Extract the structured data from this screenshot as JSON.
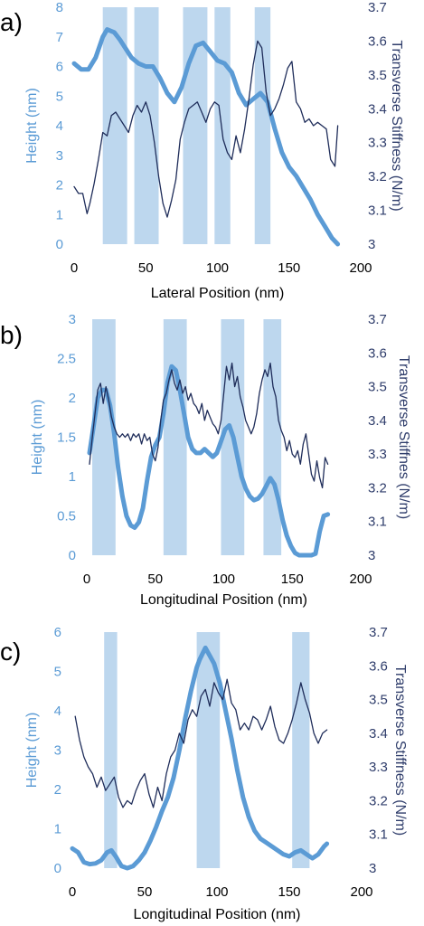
{
  "colors": {
    "height_line": "#5b9bd5",
    "stiffness_line": "#1f2d5a",
    "band_fill": "#bdd7ee",
    "left_axis_text": "#5b9bd5",
    "right_axis_text": "#2f3d6b"
  },
  "chart_data": [
    {
      "panel": "a)",
      "type": "line",
      "xlabel": "Lateral Position (nm)",
      "ylabel_left": "Height (nm)",
      "ylabel_right": "Transverse Stiffness (N/m)",
      "xlim": [
        0,
        200
      ],
      "ylim_left": [
        0,
        8
      ],
      "ylim_right": [
        3,
        3.7
      ],
      "xticks": [
        "0",
        "50",
        "100",
        "150",
        "200"
      ],
      "yticks_left": [
        "0",
        "1",
        "2",
        "3",
        "4",
        "5",
        "6",
        "7",
        "8"
      ],
      "yticks_right": [
        "3",
        "3.1",
        "3.2",
        "3.3",
        "3.4",
        "3.5",
        "3.6",
        "3.7"
      ],
      "bands": [
        [
          20,
          37
        ],
        [
          42,
          59
        ],
        [
          76,
          93
        ],
        [
          98,
          109
        ],
        [
          126,
          137
        ]
      ],
      "series": [
        {
          "name": "Height",
          "axis": "left",
          "x": [
            0,
            5,
            10,
            15,
            20,
            23,
            28,
            32,
            36,
            40,
            45,
            50,
            55,
            60,
            65,
            70,
            75,
            80,
            85,
            90,
            95,
            100,
            105,
            110,
            115,
            120,
            125,
            130,
            135,
            140,
            145,
            150,
            155,
            160,
            165,
            170,
            175,
            180,
            184
          ],
          "y": [
            6.1,
            5.9,
            5.9,
            6.3,
            7.0,
            7.25,
            7.15,
            6.9,
            6.6,
            6.3,
            6.1,
            6.0,
            6.0,
            5.6,
            5.1,
            4.8,
            5.3,
            6.1,
            6.7,
            6.8,
            6.5,
            6.2,
            6.1,
            5.8,
            5.1,
            4.7,
            4.9,
            5.1,
            4.8,
            3.9,
            3.1,
            2.6,
            2.3,
            1.9,
            1.5,
            1.0,
            0.6,
            0.2,
            0.0
          ]
        },
        {
          "name": "Transverse Stiffness",
          "axis": "right",
          "x": [
            0,
            3,
            6,
            9,
            11,
            14,
            17,
            20,
            23,
            26,
            29,
            32,
            35,
            38,
            41,
            44,
            47,
            50,
            53,
            56,
            59,
            62,
            65,
            68,
            71,
            74,
            77,
            80,
            83,
            86,
            89,
            92,
            95,
            98,
            101,
            104,
            107,
            110,
            113,
            116,
            119,
            122,
            125,
            128,
            131,
            134,
            137,
            140,
            143,
            146,
            149,
            152,
            155,
            158,
            161,
            164,
            167,
            170,
            173,
            176,
            179,
            182,
            184
          ],
          "y": [
            3.17,
            3.15,
            3.15,
            3.09,
            3.12,
            3.18,
            3.25,
            3.33,
            3.32,
            3.38,
            3.39,
            3.37,
            3.35,
            3.33,
            3.38,
            3.41,
            3.39,
            3.42,
            3.38,
            3.3,
            3.2,
            3.12,
            3.08,
            3.13,
            3.19,
            3.31,
            3.36,
            3.4,
            3.41,
            3.42,
            3.39,
            3.36,
            3.4,
            3.42,
            3.41,
            3.31,
            3.27,
            3.25,
            3.32,
            3.27,
            3.34,
            3.43,
            3.53,
            3.6,
            3.58,
            3.45,
            3.38,
            3.4,
            3.43,
            3.47,
            3.52,
            3.54,
            3.42,
            3.4,
            3.36,
            3.37,
            3.35,
            3.36,
            3.35,
            3.34,
            3.25,
            3.23,
            3.35
          ]
        }
      ]
    },
    {
      "panel": "b)",
      "type": "line",
      "xlabel": "Longitudinal Position (nm)",
      "ylabel_left": "Height (nm)",
      "ylabel_right": "Transverse Stiffnes (N/m)",
      "xlim": [
        0,
        200
      ],
      "ylim_left": [
        0,
        3
      ],
      "ylim_right": [
        3,
        3.7
      ],
      "xticks": [
        "0",
        "50",
        "100",
        "150",
        "200"
      ],
      "yticks_left": [
        "0",
        "0.5",
        "1",
        "1.5",
        "2",
        "2.5",
        "3"
      ],
      "yticks_right": [
        "3",
        "3.1",
        "3.2",
        "3.3",
        "3.4",
        "3.5",
        "3.6",
        "3.7"
      ],
      "bands": [
        [
          4,
          21
        ],
        [
          56,
          73
        ],
        [
          98,
          115
        ],
        [
          129,
          142
        ]
      ],
      "series": [
        {
          "name": "Height",
          "axis": "left",
          "x": [
            2,
            5,
            8,
            11,
            14,
            17,
            20,
            23,
            26,
            29,
            32,
            35,
            38,
            41,
            44,
            47,
            50,
            53,
            56,
            59,
            62,
            65,
            68,
            71,
            74,
            77,
            80,
            83,
            86,
            89,
            92,
            95,
            98,
            101,
            104,
            107,
            110,
            113,
            116,
            119,
            122,
            125,
            128,
            131,
            134,
            137,
            140,
            143,
            146,
            149,
            152,
            155,
            158,
            161,
            164,
            167,
            170,
            173,
            176
          ],
          "y": [
            1.3,
            1.65,
            2.0,
            2.1,
            2.1,
            1.9,
            1.55,
            1.1,
            0.75,
            0.5,
            0.38,
            0.35,
            0.42,
            0.6,
            0.95,
            1.25,
            1.4,
            1.5,
            1.8,
            2.2,
            2.4,
            2.35,
            2.1,
            1.8,
            1.5,
            1.35,
            1.3,
            1.3,
            1.35,
            1.3,
            1.25,
            1.3,
            1.45,
            1.6,
            1.65,
            1.5,
            1.25,
            1.0,
            0.85,
            0.75,
            0.7,
            0.72,
            0.78,
            0.88,
            0.98,
            0.9,
            0.7,
            0.45,
            0.25,
            0.12,
            0.03,
            0.0,
            0.0,
            0.0,
            0.0,
            0.02,
            0.3,
            0.5,
            0.52
          ]
        },
        {
          "name": "Transverse Stiffness",
          "axis": "right",
          "x": [
            2,
            4,
            6,
            8,
            10,
            12,
            14,
            16,
            18,
            20,
            22,
            24,
            26,
            28,
            30,
            32,
            34,
            36,
            38,
            40,
            42,
            44,
            46,
            48,
            50,
            52,
            54,
            56,
            58,
            60,
            62,
            64,
            66,
            68,
            70,
            72,
            74,
            76,
            78,
            80,
            82,
            84,
            86,
            88,
            90,
            92,
            94,
            96,
            98,
            100,
            102,
            104,
            106,
            108,
            110,
            112,
            114,
            116,
            118,
            120,
            122,
            124,
            126,
            128,
            130,
            132,
            134,
            136,
            138,
            140,
            142,
            144,
            146,
            148,
            150,
            152,
            154,
            156,
            158,
            160,
            162,
            164,
            166,
            168,
            170,
            172,
            174,
            176
          ],
          "y": [
            3.27,
            3.35,
            3.42,
            3.49,
            3.51,
            3.45,
            3.5,
            3.46,
            3.41,
            3.38,
            3.36,
            3.35,
            3.36,
            3.35,
            3.36,
            3.34,
            3.36,
            3.35,
            3.36,
            3.33,
            3.36,
            3.34,
            3.35,
            3.3,
            3.28,
            3.32,
            3.4,
            3.46,
            3.48,
            3.52,
            3.55,
            3.51,
            3.49,
            3.52,
            3.48,
            3.5,
            3.46,
            3.48,
            3.45,
            3.44,
            3.42,
            3.45,
            3.4,
            3.43,
            3.41,
            3.39,
            3.38,
            3.36,
            3.4,
            3.48,
            3.56,
            3.52,
            3.57,
            3.5,
            3.53,
            3.47,
            3.44,
            3.4,
            3.38,
            3.36,
            3.38,
            3.42,
            3.48,
            3.52,
            3.55,
            3.53,
            3.57,
            3.5,
            3.47,
            3.4,
            3.37,
            3.35,
            3.31,
            3.34,
            3.3,
            3.29,
            3.31,
            3.27,
            3.33,
            3.36,
            3.3,
            3.24,
            3.22,
            3.28,
            3.23,
            3.2,
            3.29,
            3.27
          ]
        }
      ]
    },
    {
      "panel": "c)",
      "type": "line",
      "xlabel": "Longitudinal Position (nm)",
      "ylabel_left": "Height (nm)",
      "ylabel_right": "Transverse Stiffness (N/m)",
      "xlim": [
        0,
        200
      ],
      "ylim_left": [
        0,
        6
      ],
      "ylim_right": [
        3,
        3.7
      ],
      "xticks": [
        "0",
        "50",
        "100",
        "150",
        "200"
      ],
      "yticks_left": [
        "0",
        "1",
        "2",
        "3",
        "4",
        "5",
        "6"
      ],
      "yticks_right": [
        "3",
        "3.1",
        "3.2",
        "3.3",
        "3.4",
        "3.5",
        "3.6",
        "3.7"
      ],
      "bands": [
        [
          22,
          31
        ],
        [
          86,
          102
        ],
        [
          152,
          164
        ]
      ],
      "series": [
        {
          "name": "Height",
          "axis": "left",
          "x": [
            0,
            4,
            8,
            12,
            16,
            20,
            24,
            27,
            30,
            34,
            38,
            42,
            46,
            50,
            54,
            58,
            62,
            66,
            70,
            74,
            78,
            82,
            86,
            88,
            90,
            92,
            95,
            98,
            102,
            106,
            110,
            114,
            118,
            122,
            126,
            130,
            134,
            138,
            142,
            146,
            150,
            154,
            158,
            162,
            166,
            170,
            174,
            176
          ],
          "y": [
            0.5,
            0.4,
            0.15,
            0.1,
            0.12,
            0.2,
            0.4,
            0.45,
            0.3,
            0.05,
            0.0,
            0.05,
            0.2,
            0.4,
            0.7,
            1.05,
            1.45,
            1.8,
            2.3,
            3.0,
            3.8,
            4.5,
            5.1,
            5.3,
            5.45,
            5.6,
            5.4,
            5.2,
            4.7,
            4.0,
            3.3,
            2.5,
            1.8,
            1.3,
            0.95,
            0.75,
            0.65,
            0.55,
            0.45,
            0.35,
            0.3,
            0.4,
            0.45,
            0.35,
            0.25,
            0.35,
            0.55,
            0.62
          ]
        },
        {
          "name": "Transverse Stiffness",
          "axis": "right",
          "x": [
            2,
            5,
            8,
            11,
            14,
            17,
            20,
            23,
            26,
            29,
            32,
            35,
            38,
            41,
            44,
            47,
            50,
            53,
            56,
            59,
            62,
            65,
            68,
            71,
            74,
            77,
            80,
            83,
            86,
            89,
            92,
            95,
            98,
            101,
            104,
            107,
            110,
            113,
            116,
            119,
            122,
            125,
            128,
            131,
            134,
            137,
            140,
            143,
            146,
            149,
            152,
            155,
            158,
            161,
            164,
            167,
            170,
            173,
            176
          ],
          "y": [
            3.45,
            3.38,
            3.33,
            3.3,
            3.28,
            3.24,
            3.27,
            3.23,
            3.25,
            3.27,
            3.21,
            3.18,
            3.2,
            3.19,
            3.23,
            3.26,
            3.28,
            3.22,
            3.18,
            3.24,
            3.2,
            3.28,
            3.33,
            3.35,
            3.4,
            3.37,
            3.44,
            3.47,
            3.45,
            3.51,
            3.53,
            3.48,
            3.55,
            3.52,
            3.5,
            3.56,
            3.49,
            3.47,
            3.41,
            3.43,
            3.41,
            3.45,
            3.44,
            3.41,
            3.44,
            3.48,
            3.42,
            3.38,
            3.37,
            3.4,
            3.44,
            3.49,
            3.55,
            3.5,
            3.46,
            3.4,
            3.37,
            3.4,
            3.41
          ]
        }
      ]
    }
  ]
}
